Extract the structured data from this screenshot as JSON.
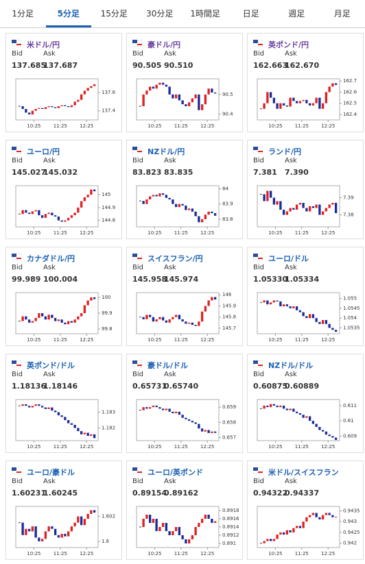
{
  "tabs": [
    "1分足",
    "5分足",
    "15分足",
    "30分足",
    "1時間足",
    "日足",
    "週足",
    "月足"
  ],
  "cards": [
    {
      "name": "米ドル/円",
      "bid_label": "Bid",
      "ask_label": "Ask",
      "bid": "137.685",
      "ask": "137.687",
      "chart": {
        "type": "candlestick",
        "xlabels": [
          "10:25",
          "11:25",
          "12:25"
        ],
        "ylim": [
          137.3,
          137.75
        ],
        "yticks": [
          137.4,
          137.6
        ],
        "closes": [
          137.45,
          137.42,
          137.38,
          137.36,
          137.4,
          137.42,
          137.43,
          137.42,
          137.44,
          137.45,
          137.44,
          137.43,
          137.45,
          137.46,
          137.45,
          137.44,
          137.46,
          137.5,
          137.52,
          137.58,
          137.62,
          137.65,
          137.67,
          137.69
        ]
      }
    },
    {
      "name": "豪ドル/円",
      "bid_label": "Bid",
      "ask_label": "Ask",
      "bid": "90.505",
      "ask": "90.510",
      "chart": {
        "type": "candlestick",
        "xlabels": [
          "10:25",
          "11:25",
          "12:25"
        ],
        "ylim": [
          90.37,
          90.58
        ],
        "yticks": [
          90.4,
          90.5
        ],
        "closes": [
          90.44,
          90.5,
          90.52,
          90.54,
          90.53,
          90.55,
          90.56,
          90.55,
          90.54,
          90.5,
          90.48,
          90.5,
          90.47,
          90.45,
          90.44,
          90.46,
          90.48,
          90.5,
          90.42,
          90.45,
          90.5,
          90.53,
          90.51,
          90.505
        ]
      }
    },
    {
      "name": "英ポンド/円",
      "bid_label": "Bid",
      "ask_label": "Ask",
      "bid": "162.663",
      "ask": "162.670",
      "chart": {
        "type": "candlestick",
        "xlabels": [
          "10:25",
          "11:25",
          "12:25"
        ],
        "ylim": [
          162.35,
          162.72
        ],
        "yticks": [
          162.4,
          162.5,
          162.6,
          162.7
        ],
        "closes": [
          162.45,
          162.5,
          162.6,
          162.55,
          162.5,
          162.45,
          162.5,
          162.48,
          162.47,
          162.55,
          162.52,
          162.5,
          162.52,
          162.53,
          162.5,
          162.48,
          162.5,
          162.55,
          162.45,
          162.5,
          162.6,
          162.65,
          162.68,
          162.665
        ]
      }
    },
    {
      "name": "ユーロ/円",
      "bid_label": "Bid",
      "ask_label": "Ask",
      "bid": "145.027",
      "ask": "145.032",
      "chart": {
        "type": "candlestick",
        "xlabels": [
          "10:25",
          "11:25",
          "12:25"
        ],
        "ylim": [
          144.75,
          145.07
        ],
        "yticks": [
          144.8,
          144.9,
          145
        ],
        "closes": [
          144.85,
          144.88,
          144.86,
          144.85,
          144.87,
          144.88,
          144.84,
          144.82,
          144.85,
          144.86,
          144.84,
          144.83,
          144.8,
          144.79,
          144.8,
          144.82,
          144.84,
          144.86,
          144.9,
          144.95,
          144.98,
          145.0,
          145.04,
          145.027
        ]
      }
    },
    {
      "name": "NZドル/円",
      "bid_label": "Bid",
      "ask_label": "Ask",
      "bid": "83.823",
      "ask": "83.835",
      "chart": {
        "type": "candlestick",
        "xlabels": [
          "10:25",
          "11:25",
          "12:25"
        ],
        "ylim": [
          83.75,
          84.02
        ],
        "yticks": [
          83.8,
          83.9,
          84
        ],
        "closes": [
          83.92,
          83.9,
          83.93,
          83.95,
          83.96,
          83.95,
          83.97,
          83.96,
          83.94,
          83.93,
          83.9,
          83.88,
          83.9,
          83.89,
          83.86,
          83.87,
          83.85,
          83.82,
          83.78,
          83.8,
          83.83,
          83.85,
          83.84,
          83.823
        ]
      }
    },
    {
      "name": "ランド/円",
      "bid_label": "Bid",
      "ask_label": "Ask",
      "bid": "7.381",
      "ask": "7.390",
      "chart": {
        "type": "candlestick",
        "xlabels": [
          "10:25",
          "11:25",
          "12:25"
        ],
        "ylim": [
          7.373,
          7.397
        ],
        "yticks": [
          7.38,
          7.39
        ],
        "closes": [
          7.392,
          7.388,
          7.394,
          7.39,
          7.386,
          7.388,
          7.383,
          7.38,
          7.382,
          7.384,
          7.383,
          7.386,
          7.387,
          7.384,
          7.382,
          7.385,
          7.384,
          7.386,
          7.38,
          7.382,
          7.384,
          7.386,
          7.387,
          7.381
        ]
      }
    },
    {
      "name": "カナダドル/円",
      "bid_label": "Bid",
      "ask_label": "Ask",
      "bid": "99.989",
      "ask": "100.004",
      "chart": {
        "type": "candlestick",
        "xlabels": [
          "10:25",
          "11:25",
          "12:25"
        ],
        "ylim": [
          99.77,
          100.03
        ],
        "yticks": [
          99.8,
          99.9,
          100
        ],
        "closes": [
          99.85,
          99.88,
          99.86,
          99.84,
          99.85,
          99.87,
          99.9,
          99.88,
          99.86,
          99.89,
          99.87,
          99.85,
          99.86,
          99.84,
          99.83,
          99.85,
          99.84,
          99.86,
          99.88,
          99.9,
          99.95,
          99.98,
          100.0,
          99.989
        ]
      }
    },
    {
      "name": "スイスフラン/円",
      "bid_label": "Bid",
      "ask_label": "Ask",
      "bid": "145.958",
      "ask": "145.974",
      "chart": {
        "type": "candlestick",
        "xlabels": [
          "10:25",
          "11:25",
          "12:25"
        ],
        "ylim": [
          145.65,
          146.02
        ],
        "yticks": [
          145.7,
          145.8,
          145.9,
          146
        ],
        "closes": [
          145.8,
          145.78,
          145.82,
          145.8,
          145.76,
          145.78,
          145.8,
          145.77,
          145.75,
          145.78,
          145.8,
          145.82,
          145.78,
          145.76,
          145.74,
          145.75,
          145.73,
          145.72,
          145.76,
          145.85,
          145.9,
          145.95,
          145.98,
          145.958
        ]
      }
    },
    {
      "name": "ユーロ/ドル",
      "bid_label": "Bid",
      "ask_label": "Ask",
      "bid": "1.05330",
      "ask": "1.05334",
      "chart": {
        "type": "candlestick",
        "xlabels": [
          "10:25",
          "11:25",
          "12:25"
        ],
        "ylim": [
          1.0532,
          1.0553
        ],
        "yticks": [
          1.0535,
          1.054,
          1.0545,
          1.055
        ],
        "closes": [
          1.0548,
          1.0549,
          1.0547,
          1.0548,
          1.0549,
          1.05485,
          1.0546,
          1.0547,
          1.0546,
          1.0545,
          1.0546,
          1.0544,
          1.0543,
          1.0541,
          1.054,
          1.0542,
          1.054,
          1.0538,
          1.0537,
          1.0539,
          1.0537,
          1.0535,
          1.0534,
          1.0533
        ]
      }
    },
    {
      "name": "英ポンド/ドル",
      "bid_label": "Bid",
      "ask_label": "Ask",
      "bid": "1.18136",
      "ask": "1.18146",
      "chart": {
        "type": "candlestick",
        "xlabels": [
          "10:25",
          "11:25",
          "12:25"
        ],
        "ylim": [
          1.1812,
          1.1838
        ],
        "yticks": [
          1.182,
          1.183
        ],
        "closes": [
          1.1834,
          1.1835,
          1.1834,
          1.1833,
          1.1834,
          1.1835,
          1.1834,
          1.1833,
          1.1832,
          1.1833,
          1.1831,
          1.183,
          1.1828,
          1.1827,
          1.1825,
          1.1823,
          1.1822,
          1.182,
          1.1818,
          1.1816,
          1.1817,
          1.1815,
          1.1816,
          1.18136
        ]
      }
    },
    {
      "name": "豪ドル/ドル",
      "bid_label": "Bid",
      "ask_label": "Ask",
      "bid": "0.65731",
      "ask": "0.65740",
      "chart": {
        "type": "candlestick",
        "xlabels": [
          "10:25",
          "11:25",
          "12:25"
        ],
        "ylim": [
          0.6568,
          0.6595
        ],
        "yticks": [
          0.657,
          0.658,
          0.659
        ],
        "closes": [
          0.6588,
          0.659,
          0.6589,
          0.659,
          0.6591,
          0.659,
          0.6589,
          0.6588,
          0.6589,
          0.6587,
          0.6586,
          0.6587,
          0.6585,
          0.6583,
          0.6582,
          0.6581,
          0.658,
          0.6579,
          0.6576,
          0.6574,
          0.6575,
          0.6573,
          0.6574,
          0.65731
        ]
      }
    },
    {
      "name": "NZドル/ドル",
      "bid_label": "Bid",
      "ask_label": "Ask",
      "bid": "0.60875",
      "ask": "0.60889",
      "chart": {
        "type": "candlestick",
        "xlabels": [
          "10:25",
          "11:25",
          "12:25"
        ],
        "ylim": [
          0.6087,
          0.6114
        ],
        "yticks": [
          0.609,
          0.61,
          0.611
        ],
        "closes": [
          0.6108,
          0.611,
          0.6109,
          0.6111,
          0.611,
          0.6109,
          0.611,
          0.6108,
          0.6107,
          0.6108,
          0.6106,
          0.6105,
          0.6104,
          0.6102,
          0.6103,
          0.61,
          0.6098,
          0.6096,
          0.6094,
          0.6093,
          0.6091,
          0.609,
          0.6089,
          0.60875
        ]
      }
    },
    {
      "name": "ユーロ/豪ドル",
      "bid_label": "Bid",
      "ask_label": "Ask",
      "bid": "1.60231",
      "ask": "1.60245",
      "chart": {
        "type": "candlestick",
        "xlabels": [
          "10:25",
          "11:25",
          "12:25"
        ],
        "ylim": [
          1.5995,
          1.6028
        ],
        "yticks": [
          1.6,
          1.602
        ],
        "closes": [
          1.6015,
          1.6005,
          1.601,
          1.6008,
          1.6012,
          1.6003,
          1.6,
          1.6002,
          1.6008,
          1.6012,
          1.601,
          1.6005,
          1.6003,
          1.6006,
          1.6004,
          1.6008,
          1.6012,
          1.6015,
          1.602,
          1.6013,
          1.6018,
          1.6022,
          1.6025,
          1.60231
        ]
      }
    },
    {
      "name": "ユーロ/英ポンド",
      "bid_label": "Bid",
      "ask_label": "Ask",
      "bid": "0.89154",
      "ask": "0.89162",
      "chart": {
        "type": "candlestick",
        "xlabels": [
          "10:25",
          "11:25",
          "12:25"
        ],
        "ylim": [
          0.8909,
          0.8919
        ],
        "yticks": [
          0.891,
          0.8912,
          0.8914,
          0.8916,
          0.8918
        ],
        "closes": [
          0.8914,
          0.8916,
          0.8917,
          0.8915,
          0.8916,
          0.8913,
          0.8914,
          0.8915,
          0.8913,
          0.8912,
          0.8913,
          0.8914,
          0.8912,
          0.8911,
          0.891,
          0.8911,
          0.8912,
          0.8914,
          0.8915,
          0.8916,
          0.8917,
          0.8916,
          0.8915,
          0.89154
        ]
      }
    },
    {
      "name": "米ドル/スイスフラン",
      "bid_label": "Bid",
      "ask_label": "Ask",
      "bid": "0.94322",
      "ask": "0.94337",
      "chart": {
        "type": "candlestick",
        "xlabels": [
          "10:25",
          "11:25",
          "12:25"
        ],
        "ylim": [
          0.9418,
          0.9437
        ],
        "yticks": [
          0.942,
          0.9425,
          0.943,
          0.9435
        ],
        "closes": [
          0.942,
          0.9421,
          0.9422,
          0.9421,
          0.9422,
          0.9424,
          0.9425,
          0.9424,
          0.9426,
          0.9425,
          0.9427,
          0.9428,
          0.9427,
          0.943,
          0.9432,
          0.9433,
          0.9434,
          0.9432,
          0.9431,
          0.9433,
          0.9434,
          0.9433,
          0.9432,
          0.94322
        ]
      }
    }
  ]
}
